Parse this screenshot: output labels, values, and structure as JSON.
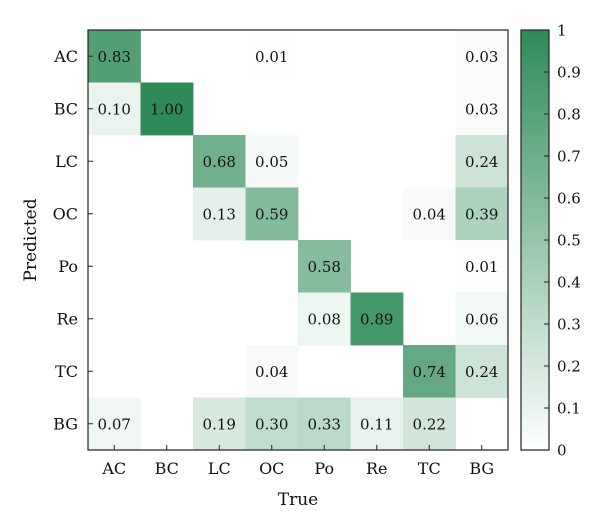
{
  "chart_data": {
    "type": "heatmap",
    "xlabel": "True",
    "ylabel": "Predicted",
    "x_categories": [
      "AC",
      "BC",
      "LC",
      "OC",
      "Po",
      "Re",
      "TC",
      "BG"
    ],
    "y_categories": [
      "AC",
      "BC",
      "LC",
      "OC",
      "Po",
      "Re",
      "TC",
      "BG"
    ],
    "cells": [
      {
        "row": "AC",
        "col": "AC",
        "value": 0.83,
        "label": "0.83"
      },
      {
        "row": "AC",
        "col": "OC",
        "value": 0.01,
        "label": "0.01"
      },
      {
        "row": "AC",
        "col": "BG",
        "value": 0.03,
        "label": "0.03"
      },
      {
        "row": "BC",
        "col": "AC",
        "value": 0.1,
        "label": "0.10"
      },
      {
        "row": "BC",
        "col": "BC",
        "value": 1.0,
        "label": "1.00"
      },
      {
        "row": "BC",
        "col": "BG",
        "value": 0.03,
        "label": "0.03"
      },
      {
        "row": "LC",
        "col": "LC",
        "value": 0.68,
        "label": "0.68"
      },
      {
        "row": "LC",
        "col": "OC",
        "value": 0.05,
        "label": "0.05"
      },
      {
        "row": "LC",
        "col": "BG",
        "value": 0.24,
        "label": "0.24"
      },
      {
        "row": "OC",
        "col": "LC",
        "value": 0.13,
        "label": "0.13"
      },
      {
        "row": "OC",
        "col": "OC",
        "value": 0.59,
        "label": "0.59"
      },
      {
        "row": "OC",
        "col": "TC",
        "value": 0.04,
        "label": "0.04"
      },
      {
        "row": "OC",
        "col": "BG",
        "value": 0.39,
        "label": "0.39"
      },
      {
        "row": "Po",
        "col": "Po",
        "value": 0.58,
        "label": "0.58"
      },
      {
        "row": "Po",
        "col": "BG",
        "value": 0.01,
        "label": "0.01"
      },
      {
        "row": "Re",
        "col": "Po",
        "value": 0.08,
        "label": "0.08"
      },
      {
        "row": "Re",
        "col": "Re",
        "value": 0.89,
        "label": "0.89"
      },
      {
        "row": "Re",
        "col": "BG",
        "value": 0.06,
        "label": "0.06"
      },
      {
        "row": "TC",
        "col": "OC",
        "value": 0.04,
        "label": "0.04"
      },
      {
        "row": "TC",
        "col": "TC",
        "value": 0.74,
        "label": "0.74"
      },
      {
        "row": "TC",
        "col": "BG",
        "value": 0.24,
        "label": "0.24"
      },
      {
        "row": "BG",
        "col": "AC",
        "value": 0.07,
        "label": "0.07"
      },
      {
        "row": "BG",
        "col": "LC",
        "value": 0.19,
        "label": "0.19"
      },
      {
        "row": "BG",
        "col": "OC",
        "value": 0.3,
        "label": "0.30"
      },
      {
        "row": "BG",
        "col": "Po",
        "value": 0.33,
        "label": "0.33"
      },
      {
        "row": "BG",
        "col": "Re",
        "value": 0.11,
        "label": "0.11"
      },
      {
        "row": "BG",
        "col": "TC",
        "value": 0.22,
        "label": "0.22"
      }
    ],
    "colorbar": {
      "min": 0,
      "max": 1,
      "ticks": [
        "0",
        "0.1",
        "0.2",
        "0.3",
        "0.4",
        "0.5",
        "0.6",
        "0.7",
        "0.8",
        "0.9",
        "1"
      ],
      "color_low": "#ffffff",
      "color_high": "#2e8b57"
    }
  }
}
